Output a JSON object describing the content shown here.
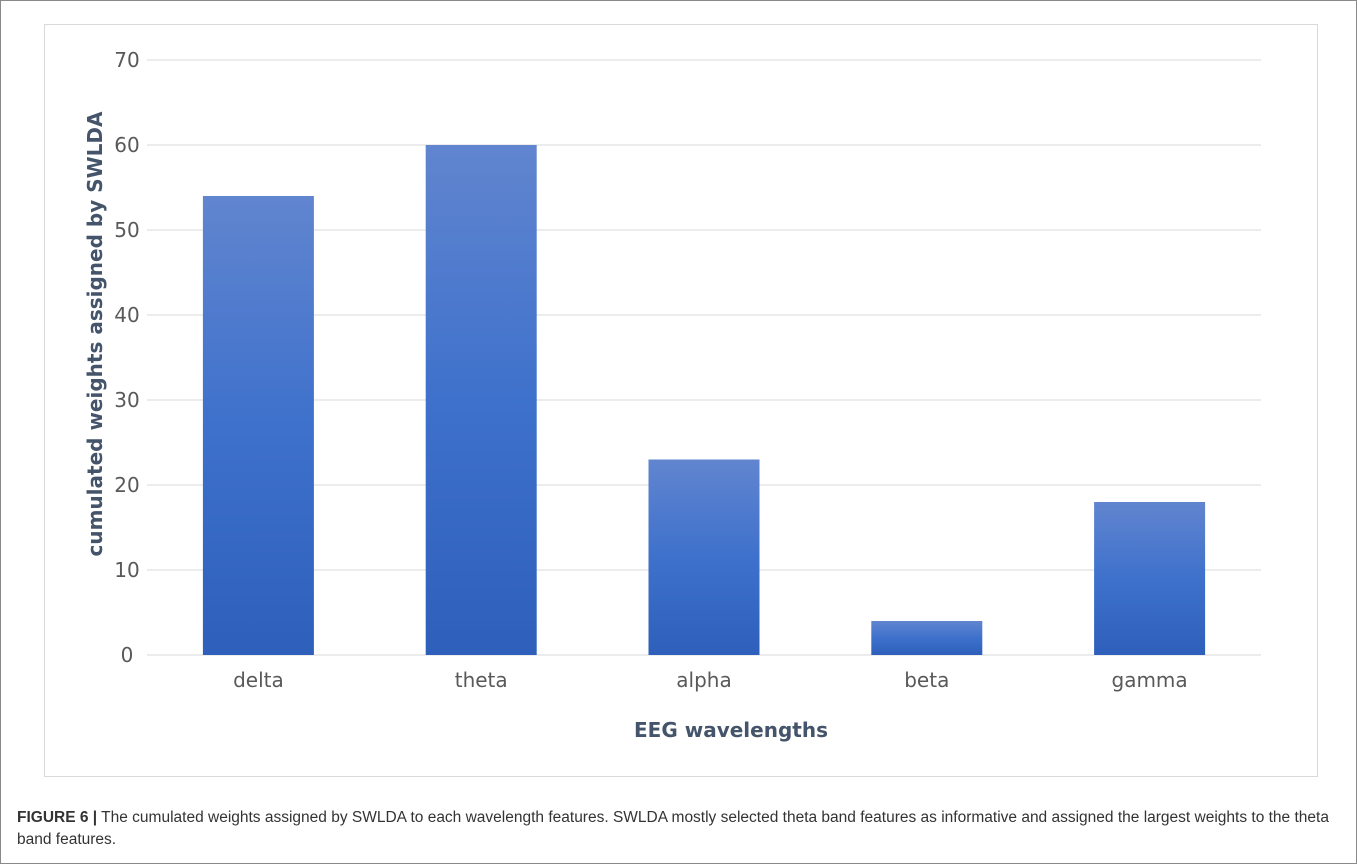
{
  "caption": {
    "label": "FIGURE 6 |",
    "text": " The cumulated weights assigned by SWLDA to each wavelength features. SWLDA mostly selected theta band features as informative and assigned the largest weights to the theta band features."
  },
  "chart_data": {
    "type": "bar",
    "categories": [
      "delta",
      "theta",
      "alpha",
      "beta",
      "gamma"
    ],
    "values": [
      54,
      60,
      23,
      4,
      18
    ],
    "xlabel": "EEG wavelengths",
    "ylabel": "cumulated weights assigned by SWLDA",
    "ylim": [
      0,
      70
    ],
    "yticks": [
      0,
      10,
      20,
      30,
      40,
      50,
      60,
      70
    ],
    "grid": true,
    "legend": "none",
    "colors": {
      "bar_top": "#6185cf",
      "bar_mid": "#3e71cc",
      "bar_bottom": "#2d5fbb",
      "grid": "#d9d9d9",
      "tick_text": "#595959",
      "axis_title": "#44546a"
    }
  }
}
